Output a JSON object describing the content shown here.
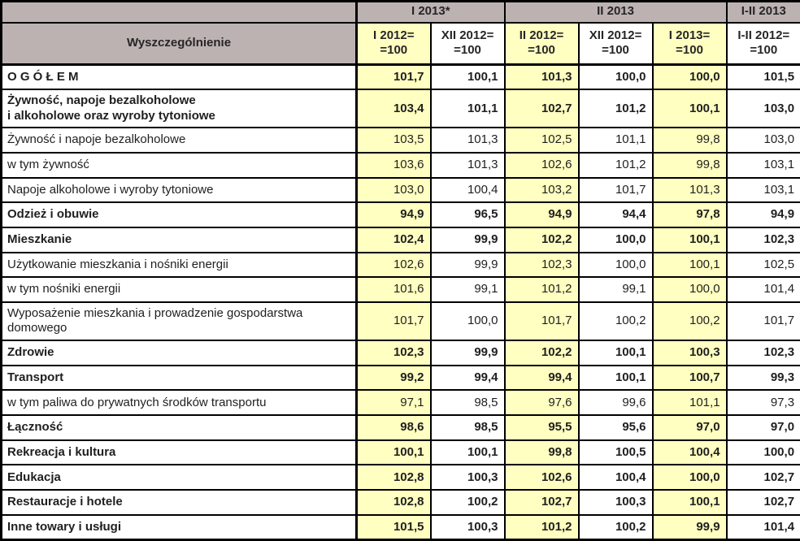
{
  "table": {
    "stub_header": "Wyszczególnienie",
    "col_groups": [
      {
        "label": "I 2013*",
        "span": 2
      },
      {
        "label": "II 2013",
        "span": 3
      },
      {
        "label": "I-II 2013",
        "span": 1
      }
    ],
    "sub_headers": [
      {
        "text": "I 2012=\n=100",
        "highlight": true
      },
      {
        "text": "XII 2012=\n=100",
        "highlight": false
      },
      {
        "text": "II 2012=\n=100",
        "highlight": true
      },
      {
        "text": "XII 2012=\n=100",
        "highlight": false
      },
      {
        "text": "I 2013=\n=100",
        "highlight": true
      },
      {
        "text": "I-II 2012=\n=100",
        "highlight": false
      }
    ],
    "rows": [
      {
        "label": "O G Ó Ł E M",
        "bold": true,
        "values": [
          "101,7",
          "100,1",
          "101,3",
          "100,0",
          "100,0",
          "101,5"
        ]
      },
      {
        "label": "Żywność, napoje bezalkoholowe\ni alkoholowe oraz wyroby tytoniowe",
        "bold": true,
        "values": [
          "103,4",
          "101,1",
          "102,7",
          "101,2",
          "100,1",
          "103,0"
        ]
      },
      {
        "label": "Żywność i napoje bezalkoholowe",
        "bold": false,
        "values": [
          "103,5",
          "101,3",
          "102,5",
          "101,1",
          "99,8",
          "103,0"
        ]
      },
      {
        "label": "w tym żywność",
        "bold": false,
        "values": [
          "103,6",
          "101,3",
          "102,6",
          "101,2",
          "99,8",
          "103,1"
        ]
      },
      {
        "label": "Napoje alkoholowe i wyroby tytoniowe",
        "bold": false,
        "values": [
          "103,0",
          "100,4",
          "103,2",
          "101,7",
          "101,3",
          "103,1"
        ]
      },
      {
        "label": "Odzież i obuwie",
        "bold": true,
        "values": [
          "94,9",
          "96,5",
          "94,9",
          "94,4",
          "97,8",
          "94,9"
        ]
      },
      {
        "label": "Mieszkanie",
        "bold": true,
        "values": [
          "102,4",
          "99,9",
          "102,2",
          "100,0",
          "100,1",
          "102,3"
        ]
      },
      {
        "label": "Użytkowanie mieszkania i nośniki energii",
        "bold": false,
        "values": [
          "102,6",
          "99,9",
          "102,3",
          "100,0",
          "100,1",
          "102,5"
        ]
      },
      {
        "label": "w tym nośniki energii",
        "bold": false,
        "values": [
          "101,6",
          "99,1",
          "101,2",
          "99,1",
          "100,0",
          "101,4"
        ]
      },
      {
        "label": "Wyposażenie mieszkania i prowadzenie gospodarstwa\ndomowego",
        "bold": false,
        "values": [
          "101,7",
          "100,0",
          "101,7",
          "100,2",
          "100,2",
          "101,7"
        ]
      },
      {
        "label": "Zdrowie",
        "bold": true,
        "values": [
          "102,3",
          "99,9",
          "102,2",
          "100,1",
          "100,3",
          "102,3"
        ]
      },
      {
        "label": "Transport",
        "bold": true,
        "values": [
          "99,2",
          "99,4",
          "99,4",
          "100,1",
          "100,7",
          "99,3"
        ]
      },
      {
        "label": "w tym paliwa do prywatnych środków transportu",
        "bold": false,
        "values": [
          "97,1",
          "98,5",
          "97,6",
          "99,6",
          "101,1",
          "97,3"
        ]
      },
      {
        "label": "Łączność",
        "bold": true,
        "values": [
          "98,6",
          "98,5",
          "95,5",
          "95,6",
          "97,0",
          "97,0"
        ]
      },
      {
        "label": "Rekreacja i kultura",
        "bold": true,
        "values": [
          "100,1",
          "100,1",
          "99,8",
          "100,5",
          "100,4",
          "100,0"
        ]
      },
      {
        "label": "Edukacja",
        "bold": true,
        "values": [
          "102,8",
          "100,3",
          "102,6",
          "100,4",
          "100,0",
          "102,7"
        ]
      },
      {
        "label": "Restauracje i hotele",
        "bold": true,
        "values": [
          "102,8",
          "100,2",
          "102,7",
          "100,3",
          "100,1",
          "102,7"
        ]
      },
      {
        "label": "Inne towary i usługi",
        "bold": true,
        "values": [
          "101,5",
          "100,3",
          "101,2",
          "100,2",
          "99,9",
          "101,4"
        ]
      }
    ],
    "colors": {
      "header_bg": "#BDB2B2",
      "highlight_bg": "#FFFFC1",
      "border": "#000000"
    }
  }
}
